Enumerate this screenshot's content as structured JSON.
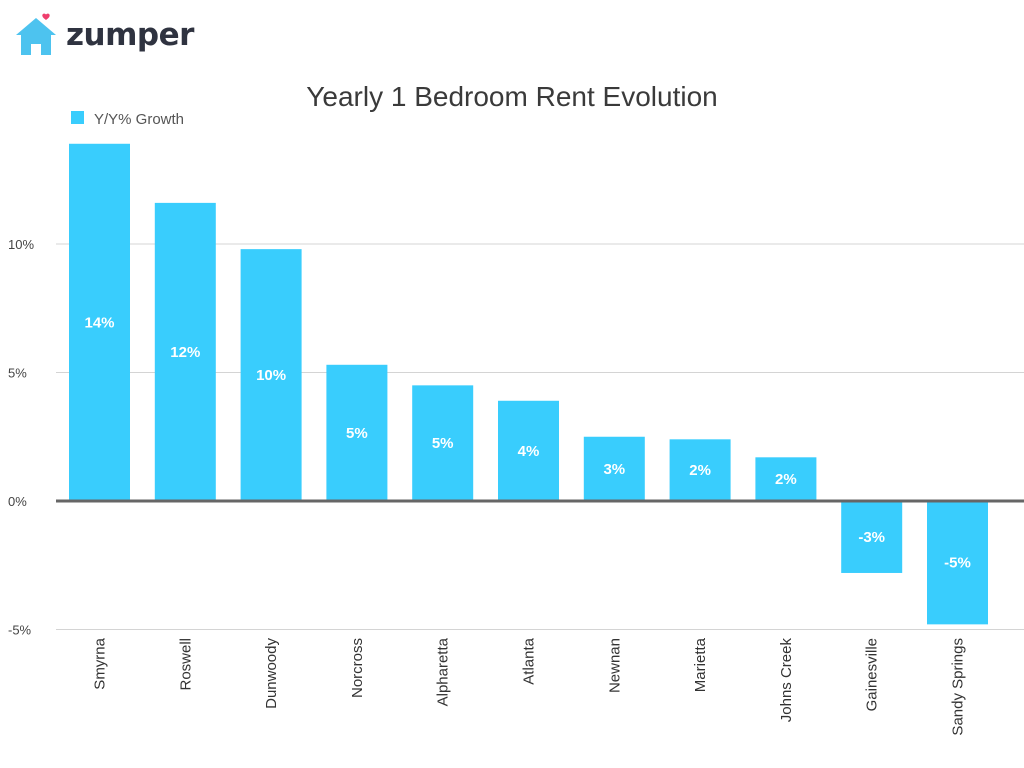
{
  "brand": {
    "name": "zumper",
    "icon": "house-heart-icon",
    "house_color": "#4dc3ef",
    "heart_color": "#ef3e6d"
  },
  "chart_data": {
    "type": "bar",
    "title": "Yearly 1 Bedroom Rent Evolution",
    "legend": {
      "position": "top-left",
      "entries": [
        "Y/Y% Growth"
      ]
    },
    "categories": [
      "Smyrna",
      "Roswell",
      "Dunwoody",
      "Norcross",
      "Alpharetta",
      "Atlanta",
      "Newnan",
      "Marietta",
      "Johns Creek",
      "Gainesville",
      "Sandy Springs"
    ],
    "series": [
      {
        "name": "Y/Y% Growth",
        "color": "#39cdfd",
        "values": [
          13.9,
          11.6,
          9.8,
          5.3,
          4.5,
          3.9,
          2.5,
          2.4,
          1.7,
          -2.8,
          -4.8
        ],
        "labels": [
          "14%",
          "12%",
          "10%",
          "5%",
          "5%",
          "4%",
          "3%",
          "2%",
          "2%",
          "-3%",
          "-5%"
        ]
      }
    ],
    "ylim": [
      -5,
      14
    ],
    "yticks": [
      -5,
      0,
      5,
      10
    ],
    "ytick_labels": [
      "-5%",
      "0%",
      "5%",
      "10%"
    ],
    "grid": true,
    "xlabel": "",
    "ylabel": ""
  }
}
